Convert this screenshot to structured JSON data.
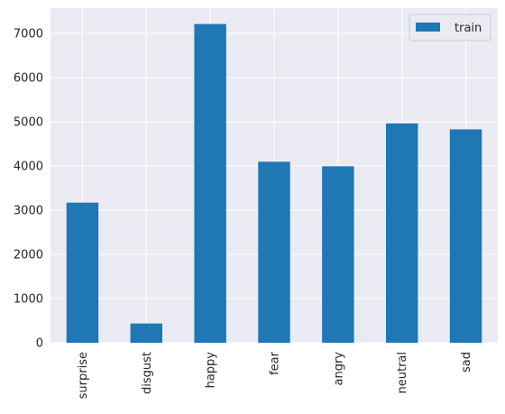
{
  "chart_data": {
    "type": "bar",
    "categories": [
      "surprise",
      "disgust",
      "happy",
      "fear",
      "angry",
      "neutral",
      "sad"
    ],
    "series": [
      {
        "name": "train",
        "values": [
          3171,
          436,
          7215,
          4097,
          3995,
          4965,
          4830
        ]
      }
    ],
    "ylim": [
      0,
      7575
    ],
    "yticks": [
      0,
      1000,
      2000,
      3000,
      4000,
      5000,
      6000,
      7000
    ],
    "grid": true,
    "legend_position": "top-right",
    "colors": {
      "bar": "#1f77b4",
      "plot_background": "#eaeaf2",
      "grid": "#ffffff",
      "text": "#262626"
    }
  }
}
